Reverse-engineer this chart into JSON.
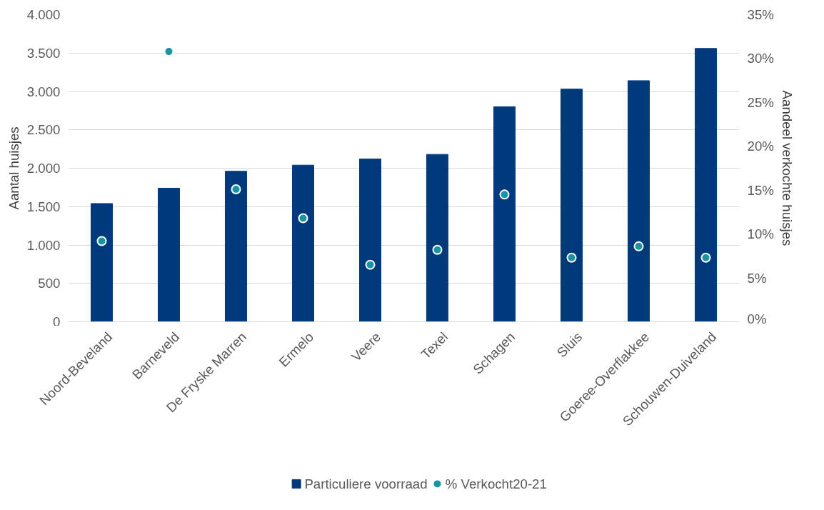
{
  "chart_data": {
    "type": "bar",
    "categories": [
      "Noord-Beveland",
      "Barneveld",
      "De Fryske Marren",
      "Ermelo",
      "Veere",
      "Texel",
      "Schagen",
      "Sluis",
      "Goeree-Overflakkee",
      "Schouwen-Duiveland"
    ],
    "ylabel": "Aantal huisjes",
    "y2label": "Aandeel verkochte huisjes",
    "series": [
      {
        "name": "Particuliere voorraad",
        "color": "#003a7d",
        "values": [
          1540,
          1740,
          1960,
          2040,
          2120,
          2180,
          2800,
          3030,
          3140,
          3560
        ]
      },
      {
        "name": "% Verkocht20-21",
        "type": "scatter",
        "axis": "y2",
        "color": "#1a93a3",
        "marker": "circle",
        "values": [
          9.2,
          30.8,
          15.1,
          11.8,
          6.5,
          8.2,
          14.5,
          7.3,
          8.6,
          7.3
        ]
      }
    ],
    "ylim": [
      0,
      4000
    ],
    "yticks": [
      {
        "value": 0,
        "label": "0"
      },
      {
        "value": 500,
        "label": "500"
      },
      {
        "value": 1000,
        "label": "1.000"
      },
      {
        "value": 1500,
        "label": "1.500"
      },
      {
        "value": 2000,
        "label": "2.000"
      },
      {
        "value": 2500,
        "label": "2.500"
      },
      {
        "value": 3000,
        "label": "3.000"
      },
      {
        "value": 3500,
        "label": "3.500"
      },
      {
        "value": 4000,
        "label": "4.000"
      }
    ],
    "y2lim": [
      0,
      35
    ],
    "y2ticks": [
      {
        "value": 0,
        "label": "0%"
      },
      {
        "value": 5,
        "label": "5%"
      },
      {
        "value": 10,
        "label": "10%"
      },
      {
        "value": 15,
        "label": "15%"
      },
      {
        "value": 20,
        "label": "20%"
      },
      {
        "value": 25,
        "label": "25%"
      },
      {
        "value": 30,
        "label": "30%"
      },
      {
        "value": 35,
        "label": "35%"
      }
    ],
    "grid": "y",
    "legend": "bottom"
  }
}
